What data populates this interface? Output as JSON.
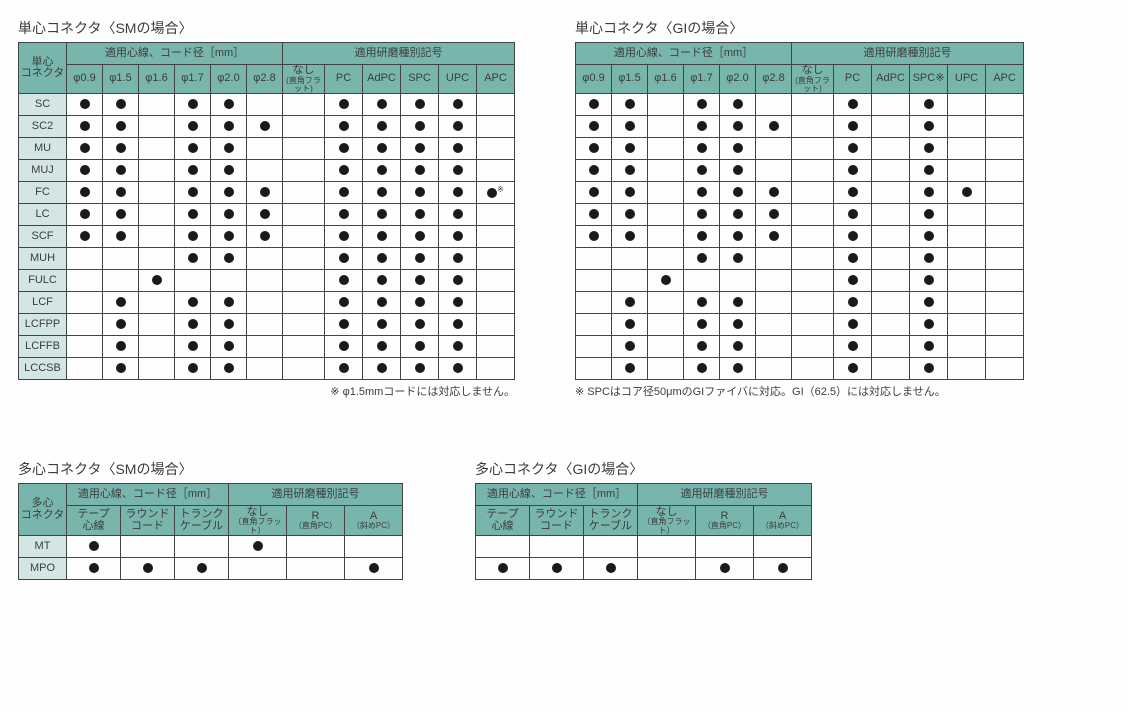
{
  "colors": {
    "header_bg": "#78b5ad",
    "rowheader_bg": "#d3e6e3",
    "border": "#444",
    "dot": "#1a1a1a",
    "text": "#3c3c3c"
  },
  "singleSM": {
    "title": "単心コネクタ〈SMの場合〉",
    "corner": "単心\nコネクタ",
    "group1": "適用心線、コード径［mm］",
    "group2": "適用研磨種別記号",
    "diam": [
      "φ0.9",
      "φ1.5",
      "φ1.6",
      "φ1.7",
      "φ2.0",
      "φ2.8"
    ],
    "polish": [
      "なし",
      "PC",
      "AdPC",
      "SPC",
      "UPC",
      "APC"
    ],
    "nashi_sub": "(直角フラット)",
    "rows": [
      {
        "n": "SC",
        "d": [
          1,
          1,
          0,
          1,
          1,
          0
        ],
        "p": [
          0,
          1,
          1,
          1,
          1,
          0
        ]
      },
      {
        "n": "SC2",
        "d": [
          1,
          1,
          0,
          1,
          1,
          1
        ],
        "p": [
          0,
          1,
          1,
          1,
          1,
          0
        ]
      },
      {
        "n": "MU",
        "d": [
          1,
          1,
          0,
          1,
          1,
          0
        ],
        "p": [
          0,
          1,
          1,
          1,
          1,
          0
        ]
      },
      {
        "n": "MUJ",
        "d": [
          1,
          1,
          0,
          1,
          1,
          0
        ],
        "p": [
          0,
          1,
          1,
          1,
          1,
          0
        ]
      },
      {
        "n": "FC",
        "d": [
          1,
          1,
          0,
          1,
          1,
          1
        ],
        "p": [
          0,
          1,
          1,
          1,
          1,
          2
        ]
      },
      {
        "n": "LC",
        "d": [
          1,
          1,
          0,
          1,
          1,
          1
        ],
        "p": [
          0,
          1,
          1,
          1,
          1,
          0
        ]
      },
      {
        "n": "SCF",
        "d": [
          1,
          1,
          0,
          1,
          1,
          1
        ],
        "p": [
          0,
          1,
          1,
          1,
          1,
          0
        ]
      },
      {
        "n": "MUH",
        "d": [
          0,
          0,
          0,
          1,
          1,
          0
        ],
        "p": [
          0,
          1,
          1,
          1,
          1,
          0
        ]
      },
      {
        "n": "FULC",
        "d": [
          0,
          0,
          1,
          0,
          0,
          0
        ],
        "p": [
          0,
          1,
          1,
          1,
          1,
          0
        ]
      },
      {
        "n": "LCF",
        "d": [
          0,
          1,
          0,
          1,
          1,
          0
        ],
        "p": [
          0,
          1,
          1,
          1,
          1,
          0
        ]
      },
      {
        "n": "LCFPP",
        "d": [
          0,
          1,
          0,
          1,
          1,
          0
        ],
        "p": [
          0,
          1,
          1,
          1,
          1,
          0
        ]
      },
      {
        "n": "LCFFB",
        "d": [
          0,
          1,
          0,
          1,
          1,
          0
        ],
        "p": [
          0,
          1,
          1,
          1,
          1,
          0
        ]
      },
      {
        "n": "LCCSB",
        "d": [
          0,
          1,
          0,
          1,
          1,
          0
        ],
        "p": [
          0,
          1,
          1,
          1,
          1,
          0
        ]
      }
    ],
    "note": "※ φ1.5mmコードには対応しません。"
  },
  "singleGI": {
    "title": "単心コネクタ〈GIの場合〉",
    "group1": "適用心線、コード径［mm］",
    "group2": "適用研磨種別記号",
    "diam": [
      "φ0.9",
      "φ1.5",
      "φ1.6",
      "φ1.7",
      "φ2.0",
      "φ2.8"
    ],
    "polish": [
      "なし",
      "PC",
      "AdPC",
      "SPC※",
      "UPC",
      "APC"
    ],
    "nashi_sub": "(直角フラット)",
    "rows": [
      {
        "d": [
          1,
          1,
          0,
          1,
          1,
          0
        ],
        "p": [
          0,
          1,
          0,
          1,
          0,
          0
        ]
      },
      {
        "d": [
          1,
          1,
          0,
          1,
          1,
          1
        ],
        "p": [
          0,
          1,
          0,
          1,
          0,
          0
        ]
      },
      {
        "d": [
          1,
          1,
          0,
          1,
          1,
          0
        ],
        "p": [
          0,
          1,
          0,
          1,
          0,
          0
        ]
      },
      {
        "d": [
          1,
          1,
          0,
          1,
          1,
          0
        ],
        "p": [
          0,
          1,
          0,
          1,
          0,
          0
        ]
      },
      {
        "d": [
          1,
          1,
          0,
          1,
          1,
          1
        ],
        "p": [
          0,
          1,
          0,
          1,
          1,
          0
        ]
      },
      {
        "d": [
          1,
          1,
          0,
          1,
          1,
          1
        ],
        "p": [
          0,
          1,
          0,
          1,
          0,
          0
        ]
      },
      {
        "d": [
          1,
          1,
          0,
          1,
          1,
          1
        ],
        "p": [
          0,
          1,
          0,
          1,
          0,
          0
        ]
      },
      {
        "d": [
          0,
          0,
          0,
          1,
          1,
          0
        ],
        "p": [
          0,
          1,
          0,
          1,
          0,
          0
        ]
      },
      {
        "d": [
          0,
          0,
          1,
          0,
          0,
          0
        ],
        "p": [
          0,
          1,
          0,
          1,
          0,
          0
        ]
      },
      {
        "d": [
          0,
          1,
          0,
          1,
          1,
          0
        ],
        "p": [
          0,
          1,
          0,
          1,
          0,
          0
        ]
      },
      {
        "d": [
          0,
          1,
          0,
          1,
          1,
          0
        ],
        "p": [
          0,
          1,
          0,
          1,
          0,
          0
        ]
      },
      {
        "d": [
          0,
          1,
          0,
          1,
          1,
          0
        ],
        "p": [
          0,
          1,
          0,
          1,
          0,
          0
        ]
      },
      {
        "d": [
          0,
          1,
          0,
          1,
          1,
          0
        ],
        "p": [
          0,
          1,
          0,
          1,
          0,
          0
        ]
      }
    ],
    "note": "※ SPCはコア径50μmのGIファイバに対応。GI（62.5）には対応しません。"
  },
  "multiSM": {
    "title": "多心コネクタ〈SMの場合〉",
    "corner": "多心\nコネクタ",
    "group1": "適用心線、コード径［mm］",
    "group2": "適用研磨種別記号",
    "cords": [
      "テープ\n心線",
      "ラウンド\nコード",
      "トランク\nケーブル"
    ],
    "polish": [
      "なし",
      "R",
      "A"
    ],
    "polish_sub": [
      "（直角フラット）",
      "（直角PC）",
      "（斜めPC）"
    ],
    "rows": [
      {
        "n": "MT",
        "c": [
          1,
          0,
          0
        ],
        "p": [
          1,
          0,
          0
        ]
      },
      {
        "n": "MPO",
        "c": [
          1,
          1,
          1
        ],
        "p": [
          0,
          0,
          1
        ]
      }
    ]
  },
  "multiGI": {
    "title": "多心コネクタ〈GIの場合〉",
    "group1": "適用心線、コード径［mm］",
    "group2": "適用研磨種別記号",
    "cords": [
      "テープ\n心線",
      "ラウンド\nコード",
      "トランク\nケーブル"
    ],
    "polish": [
      "なし",
      "R",
      "A"
    ],
    "polish_sub": [
      "（直角フラット）",
      "（直角PC）",
      "（斜めPC）"
    ],
    "rows": [
      {
        "c": [
          0,
          0,
          0
        ],
        "p": [
          0,
          0,
          0
        ]
      },
      {
        "c": [
          1,
          1,
          1
        ],
        "p": [
          0,
          1,
          1
        ]
      }
    ]
  }
}
